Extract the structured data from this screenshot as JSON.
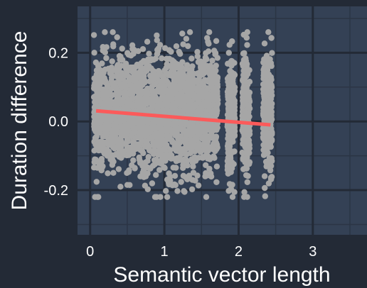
{
  "colors": {
    "background": "#232a36",
    "panel": "#344155",
    "grid_major": "#232a36",
    "grid_minor": "#2b3545",
    "points": "#a6a6a6",
    "fit_line": "#fb5a5a",
    "text": "#ffffff"
  },
  "chart_data": {
    "type": "scatter",
    "title": "",
    "xlabel": "Semantic vector length",
    "ylabel": "Duration difference",
    "xlim": [
      -0.17,
      3.73
    ],
    "ylim": [
      -0.33,
      0.335
    ],
    "x_ticks": [
      0,
      1,
      2,
      3
    ],
    "x_tick_labels": [
      "0",
      "1",
      "2",
      "3"
    ],
    "y_ticks": [
      -0.2,
      0.0,
      0.2
    ],
    "y_tick_labels": [
      "-0.2",
      "0.0",
      "0.2"
    ],
    "grid": true,
    "legend": "none",
    "point_cloud": {
      "description_note": "approximately 3000 points",
      "x_range": [
        0.05,
        2.45
      ],
      "y_range": [
        -0.22,
        0.26
      ],
      "center_y": 0.02
    },
    "trend_line": {
      "x": [
        0.08,
        2.43
      ],
      "y": [
        0.031,
        -0.01
      ]
    }
  }
}
